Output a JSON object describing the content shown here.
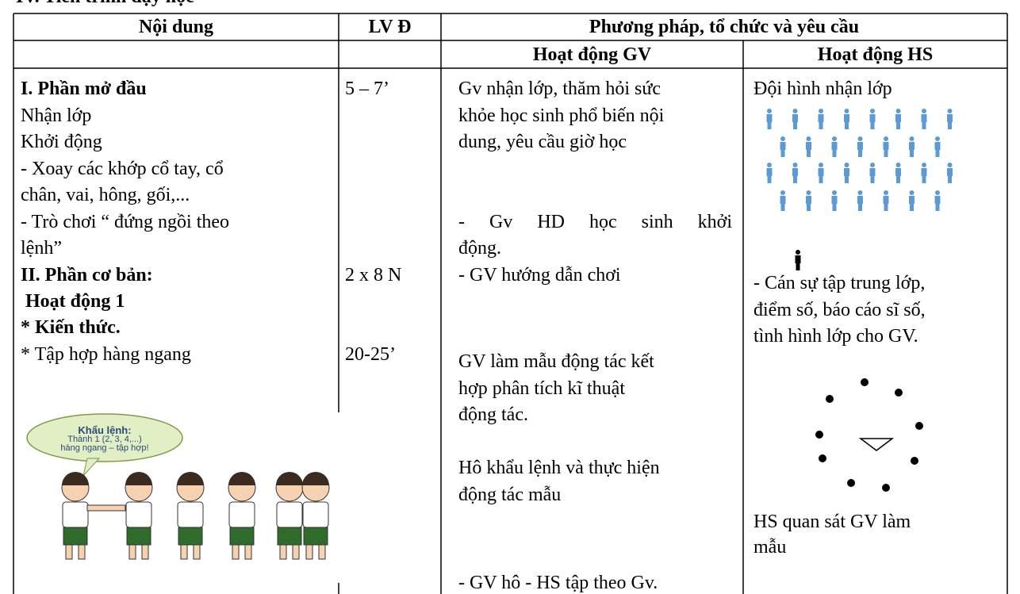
{
  "heading": "IV. Tiến trình dạy học",
  "table": {
    "header": [
      "Nội dung",
      "LV Đ",
      "Phương pháp, tổ chức và yêu cầu"
    ],
    "subheader": [
      "Hoạt động GV",
      "Hoạt động HS"
    ],
    "content": [
      "I. Phần mở đầu",
      "Nhận lớp",
      "Khởi động",
      "- Xoay các khớp cổ tay, cổ",
      "chân, vai, hông, gối,...",
      "- Trò chơi “ đứng ngồi theo",
      "lệnh”",
      "II. Phần cơ bản:",
      " Hoạt động 1",
      "* Kiến thức.",
      "* Tập hợp hàng ngang"
    ],
    "image_caption": [
      "Khẩu lệnh:",
      "Thành 1 (2, 3, 4,...)",
      "hàng ngang – tập hợp!"
    ],
    "time": [
      "5 – 7’",
      "2 x 8 N",
      "20-25’"
    ],
    "teacher": [
      "Gv nhận lớp, thăm hỏi sức",
      "khỏe học sinh phổ biến nội",
      "dung, yêu cầu giờ học",
      "- Gv HD học sinh khởi",
      "động.",
      "- GV hướng dẫn chơi",
      "GV làm mẫu động tác kết",
      "hợp phân tích kĩ thuật",
      "động tác.",
      "Hô khẩu lệnh và thực hiện",
      "động tác mẫu",
      "- GV hô - HS tập theo Gv."
    ],
    "student": [
      "Đội hình nhận lớp",
      "- Cán sự tập trung lớp,",
      "điểm số, báo cáo sĩ số,",
      "tình hình lớp cho GV.",
      "HS quan sát GV làm",
      "mẫu"
    ]
  }
}
